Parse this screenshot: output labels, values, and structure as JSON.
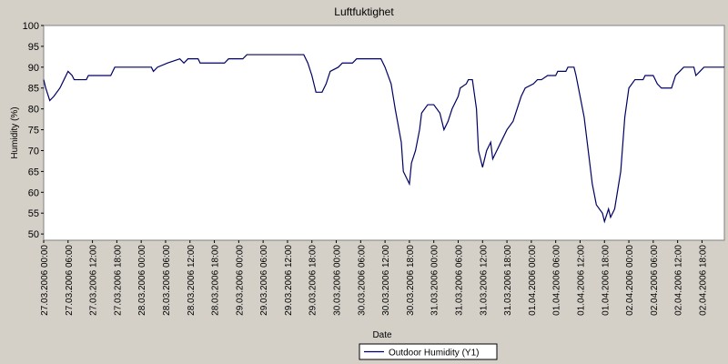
{
  "chart_data": {
    "type": "line",
    "title": "Luftfuktighet",
    "x_label": "Date",
    "y_label": "Humidity (%)",
    "x": [
      "27.03.2006 00:00",
      "27.03.2006 00:30",
      "27.03.2006 01:30",
      "27.03.2006 02:30",
      "27.03.2006 04:00",
      "27.03.2006 05:00",
      "27.03.2006 06:00",
      "27.03.2006 07:00",
      "27.03.2006 07:30",
      "27.03.2006 10:30",
      "27.03.2006 11:00",
      "27.03.2006 16:30",
      "27.03.2006 17:30",
      "28.03.2006 02:30",
      "28.03.2006 03:00",
      "28.03.2006 04:00",
      "28.03.2006 06:30",
      "28.03.2006 09:30",
      "28.03.2006 10:30",
      "28.03.2006 11:30",
      "28.03.2006 14:00",
      "28.03.2006 14:30",
      "28.03.2006 20:30",
      "28.03.2006 21:30",
      "29.03.2006 01:00",
      "29.03.2006 02:00",
      "29.03.2006 16:00",
      "29.03.2006 17:00",
      "29.03.2006 18:00",
      "29.03.2006 19:00",
      "29.03.2006 20:30",
      "29.03.2006 21:30",
      "29.03.2006 22:30",
      "30.03.2006 00:30",
      "30.03.2006 01:30",
      "30.03.2006 04:00",
      "30.03.2006 05:00",
      "30.03.2006 11:00",
      "30.03.2006 12:00",
      "30.03.2006 13:30",
      "30.03.2006 14:30",
      "30.03.2006 16:00",
      "30.03.2006 16:30",
      "30.03.2006 18:00",
      "30.03.2006 18:30",
      "30.03.2006 19:30",
      "30.03.2006 20:30",
      "30.03.2006 21:00",
      "30.03.2006 22:30",
      "31.03.2006 00:00",
      "31.03.2006 01:30",
      "31.03.2006 02:30",
      "31.03.2006 03:30",
      "31.03.2006 04:30",
      "31.03.2006 06:00",
      "31.03.2006 06:30",
      "31.03.2006 08:00",
      "31.03.2006 08:30",
      "31.03.2006 09:30",
      "31.03.2006 10:30",
      "31.03.2006 11:00",
      "31.03.2006 12:00",
      "31.03.2006 13:00",
      "31.03.2006 14:00",
      "31.03.2006 14:30",
      "31.03.2006 15:30",
      "31.03.2006 16:30",
      "31.03.2006 18:00",
      "31.03.2006 19:30",
      "31.03.2006 20:30",
      "31.03.2006 21:30",
      "31.03.2006 22:30",
      "01.04.2006 00:30",
      "01.04.2006 01:30",
      "01.04.2006 02:30",
      "01.04.2006 04:00",
      "01.04.2006 06:00",
      "01.04.2006 06:30",
      "01.04.2006 08:30",
      "01.04.2006 09:00",
      "01.04.2006 10:30",
      "01.04.2006 11:00",
      "01.04.2006 12:00",
      "01.04.2006 13:00",
      "01.04.2006 14:00",
      "01.04.2006 15:00",
      "01.04.2006 16:00",
      "01.04.2006 17:30",
      "01.04.2006 18:00",
      "01.04.2006 19:00",
      "01.04.2006 19:30",
      "01.04.2006 20:30",
      "01.04.2006 22:00",
      "01.04.2006 23:00",
      "02.04.2006 00:00",
      "02.04.2006 01:30",
      "02.04.2006 03:30",
      "02.04.2006 04:00",
      "02.04.2006 06:00",
      "02.04.2006 07:00",
      "02.04.2006 08:00",
      "02.04.2006 10:30",
      "02.04.2006 11:30",
      "02.04.2006 12:30",
      "02.04.2006 13:30",
      "02.04.2006 16:00",
      "02.04.2006 16:30",
      "02.04.2006 17:30",
      "02.04.2006 18:30",
      "02.04.2006 23:30"
    ],
    "series": [
      {
        "name": "Outdoor Humidity (Y1)",
        "color": "#000066",
        "values": [
          87,
          85,
          82,
          83,
          85,
          87,
          89,
          88,
          87,
          87,
          88,
          88,
          90,
          90,
          89,
          90,
          91,
          92,
          91,
          92,
          92,
          91,
          91,
          92,
          92,
          93,
          93,
          91,
          88,
          84,
          84,
          86,
          89,
          90,
          91,
          91,
          92,
          92,
          90,
          86,
          80,
          72,
          65,
          62,
          67,
          70,
          75,
          79,
          81,
          81,
          79,
          75,
          77,
          80,
          83,
          85,
          86,
          87,
          87,
          80,
          70,
          66,
          70,
          72,
          68,
          70,
          72,
          75,
          77,
          80,
          83,
          85,
          86,
          87,
          87,
          88,
          88,
          89,
          89,
          90,
          90,
          88,
          83,
          78,
          70,
          62,
          57,
          55,
          53,
          56,
          54,
          56,
          65,
          78,
          85,
          87,
          87,
          88,
          88,
          86,
          85,
          85,
          88,
          89,
          90,
          90,
          88,
          89,
          90,
          90
        ]
      }
    ],
    "xlim": [
      "27.03.2006 00:00",
      "02.04.2006 23:30"
    ],
    "xticks": [
      "27.03.2006 00:00",
      "27.03.2006 06:00",
      "27.03.2006 12:00",
      "27.03.2006 18:00",
      "28.03.2006 00:00",
      "28.03.2006 06:00",
      "28.03.2006 12:00",
      "28.03.2006 18:00",
      "29.03.2006 00:00",
      "29.03.2006 06:00",
      "29.03.2006 12:00",
      "29.03.2006 18:00",
      "30.03.2006 00:00",
      "30.03.2006 06:00",
      "30.03.2006 12:00",
      "30.03.2006 18:00",
      "31.03.2006 00:00",
      "31.03.2006 06:00",
      "31.03.2006 12:00",
      "31.03.2006 18:00",
      "01.04.2006 00:00",
      "01.04.2006 06:00",
      "01.04.2006 12:00",
      "01.04.2006 18:00",
      "02.04.2006 00:00",
      "02.04.2006 06:00",
      "02.04.2006 12:00",
      "02.04.2006 18:00"
    ],
    "ylim": [
      48.5,
      100
    ],
    "yticks": [
      50,
      55,
      60,
      65,
      70,
      75,
      80,
      85,
      90,
      95,
      100
    ],
    "grid": false
  }
}
